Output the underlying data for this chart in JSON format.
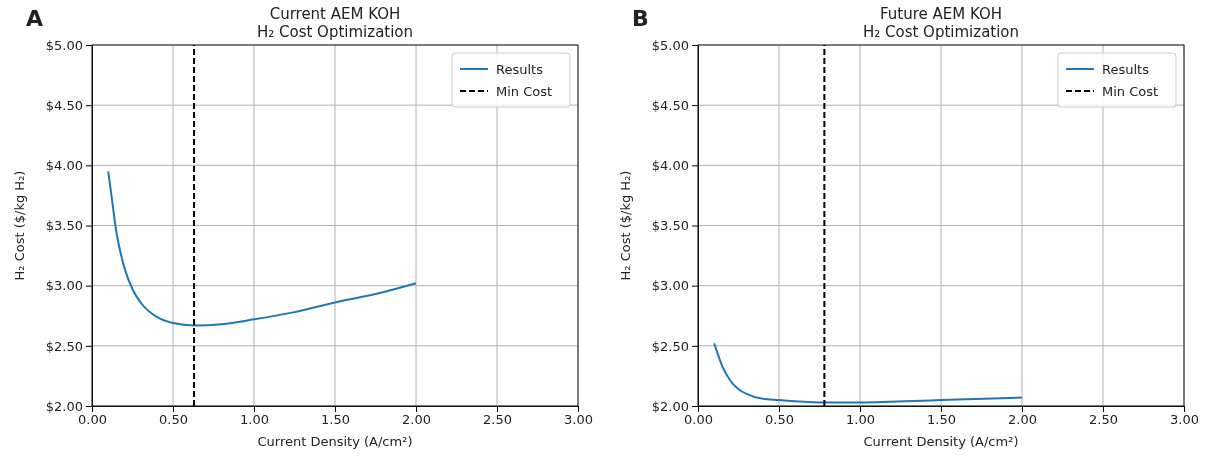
{
  "chart_data": [
    {
      "type": "line",
      "title": "Current AEM KOH\nH₂ Cost Optimization",
      "xlabel": "Current Density (A/cm²)",
      "ylabel": "H₂ Cost ($/kg H₂)",
      "annotations": [
        "A"
      ],
      "series": [
        {
          "name": "Results",
          "color": "#1f77b4",
          "x": [
            0.1,
            0.12,
            0.15,
            0.2,
            0.25,
            0.3,
            0.4,
            0.5,
            0.63,
            0.8,
            1.0,
            1.25,
            1.5,
            1.75,
            2.0
          ],
          "values": [
            3.95,
            3.75,
            3.45,
            3.15,
            2.97,
            2.86,
            2.74,
            2.69,
            2.67,
            2.68,
            2.72,
            2.78,
            2.86,
            2.93,
            3.02
          ]
        }
      ],
      "ref_lines": [
        {
          "axis": "x",
          "value": 0.63,
          "label": "Min Cost",
          "color": "#000000",
          "line_style": "dashed"
        }
      ],
      "xlim": [
        0,
        3
      ],
      "ylim": [
        2,
        5
      ],
      "xticks": [
        {
          "value": 0,
          "label": "0.00"
        },
        {
          "value": 0.5,
          "label": "0.50"
        },
        {
          "value": 1,
          "label": "1.00"
        },
        {
          "value": 1.5,
          "label": "1.50"
        },
        {
          "value": 2,
          "label": "2.00"
        },
        {
          "value": 2.5,
          "label": "2.50"
        },
        {
          "value": 3,
          "label": "3.00"
        }
      ],
      "yticks": [
        {
          "value": 2,
          "label": "$2.00"
        },
        {
          "value": 2.5,
          "label": "$2.50"
        },
        {
          "value": 3,
          "label": "$3.00"
        },
        {
          "value": 3.5,
          "label": "$3.50"
        },
        {
          "value": 4,
          "label": "$4.00"
        },
        {
          "value": 4.5,
          "label": "$4.50"
        },
        {
          "value": 5,
          "label": "$5.00"
        }
      ],
      "grid": true,
      "legend": "top right",
      "line_style": "solid"
    },
    {
      "type": "line",
      "title": "Future AEM KOH\nH₂ Cost Optimization",
      "xlabel": "Current Density (A/cm²)",
      "ylabel": "H₂ Cost ($/kg H₂)",
      "annotations": [
        "B"
      ],
      "series": [
        {
          "name": "Results",
          "color": "#1f77b4",
          "x": [
            0.1,
            0.15,
            0.2,
            0.25,
            0.3,
            0.4,
            0.5,
            0.6,
            0.78,
            1.0,
            1.5,
            2.0
          ],
          "values": [
            2.52,
            2.33,
            2.21,
            2.14,
            2.1,
            2.06,
            2.05,
            2.04,
            2.03,
            2.03,
            2.05,
            2.07
          ]
        }
      ],
      "ref_lines": [
        {
          "axis": "x",
          "value": 0.78,
          "label": "Min Cost",
          "color": "#000000",
          "line_style": "dashed"
        }
      ],
      "xlim": [
        0,
        3
      ],
      "ylim": [
        2,
        5
      ],
      "xticks": [
        {
          "value": 0,
          "label": "0.00"
        },
        {
          "value": 0.5,
          "label": "0.50"
        },
        {
          "value": 1,
          "label": "1.00"
        },
        {
          "value": 1.5,
          "label": "1.50"
        },
        {
          "value": 2,
          "label": "2.00"
        },
        {
          "value": 2.5,
          "label": "2.50"
        },
        {
          "value": 3,
          "label": "3.00"
        }
      ],
      "yticks": [
        {
          "value": 2,
          "label": "$2.00"
        },
        {
          "value": 2.5,
          "label": "$2.50"
        },
        {
          "value": 3,
          "label": "$3.00"
        },
        {
          "value": 3.5,
          "label": "$3.50"
        },
        {
          "value": 4,
          "label": "$4.00"
        },
        {
          "value": 4.5,
          "label": "$4.50"
        },
        {
          "value": 5,
          "label": "$5.00"
        }
      ],
      "grid": true,
      "legend": "top right",
      "line_style": "solid"
    }
  ]
}
